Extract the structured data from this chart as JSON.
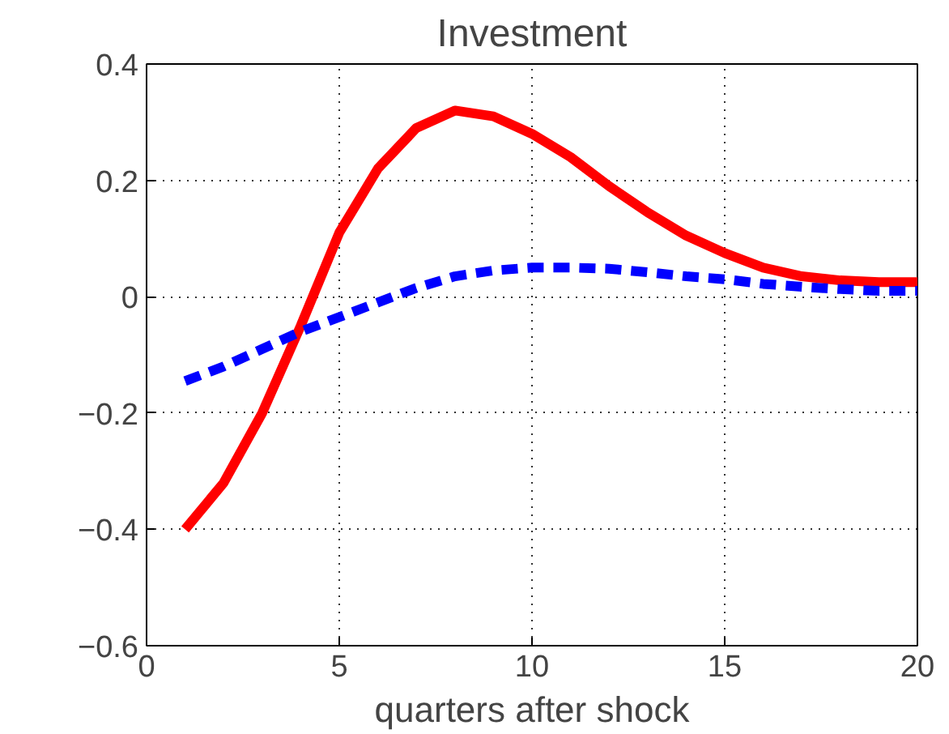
{
  "chart_data": {
    "type": "line",
    "title": "Investment",
    "xlabel": "quarters after shock",
    "x": [
      1,
      2,
      3,
      4,
      5,
      6,
      7,
      8,
      9,
      10,
      11,
      12,
      13,
      14,
      15,
      16,
      17,
      18,
      19,
      20
    ],
    "series": [
      {
        "color": "#ff0000",
        "line_style": "solid",
        "values": [
          -0.4,
          -0.32,
          -0.2,
          -0.05,
          0.11,
          0.22,
          0.29,
          0.32,
          0.31,
          0.28,
          0.24,
          0.19,
          0.145,
          0.105,
          0.075,
          0.05,
          0.035,
          0.028,
          0.025,
          0.025
        ]
      },
      {
        "color": "#0000ff",
        "line_style": "dashed",
        "values": [
          -0.145,
          -0.12,
          -0.09,
          -0.06,
          -0.035,
          -0.01,
          0.015,
          0.035,
          0.045,
          0.05,
          0.05,
          0.048,
          0.042,
          0.035,
          0.03,
          0.022,
          0.017,
          0.013,
          0.01,
          0.01
        ]
      }
    ],
    "xlim": [
      0,
      20
    ],
    "xticks": [
      0,
      5,
      10,
      15,
      20
    ],
    "ylim": [
      -0.6,
      0.4
    ],
    "yticks": [
      {
        "value": -0.6,
        "label": "−0.6"
      },
      {
        "value": -0.4,
        "label": "−0.4"
      },
      {
        "value": -0.2,
        "label": "−0.2"
      },
      0,
      0.2,
      0.4
    ],
    "grid": true,
    "marker": "none"
  }
}
